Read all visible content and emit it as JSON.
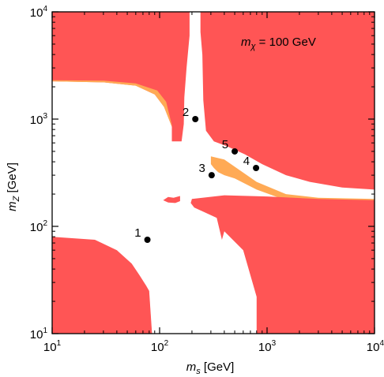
{
  "chart_data": {
    "type": "scatter",
    "title": "",
    "annotation": {
      "prefix": "m",
      "subscript": "χ",
      "suffix": " = 100 GeV"
    },
    "xlabel": {
      "base": "m",
      "sub": "s",
      "rest": " [GeV]"
    },
    "ylabel": {
      "base": "m",
      "sub": "Z",
      "rest": " [GeV]"
    },
    "xscale": "log",
    "yscale": "log",
    "xlim": [
      10,
      10000
    ],
    "ylim": [
      10,
      10000
    ],
    "x_ticks": [
      {
        "value": 10,
        "base": "10",
        "exp": "1"
      },
      {
        "value": 100,
        "base": "10",
        "exp": "2"
      },
      {
        "value": 1000,
        "base": "10",
        "exp": "3"
      },
      {
        "value": 10000,
        "base": "10",
        "exp": "4"
      }
    ],
    "y_ticks": [
      {
        "value": 10,
        "base": "10",
        "exp": "1"
      },
      {
        "value": 100,
        "base": "10",
        "exp": "2"
      },
      {
        "value": 1000,
        "base": "10",
        "exp": "3"
      },
      {
        "value": 10000,
        "base": "10",
        "exp": "4"
      }
    ],
    "colors": {
      "excluded": "#ff5555",
      "secondary": "#ffaa55",
      "allowed": "#ffffff",
      "point": "#000000"
    },
    "regions": [
      {
        "name": "upper-left-excluded",
        "color": "excluded",
        "points": [
          [
            10,
            10000
          ],
          [
            190,
            10000
          ],
          [
            190,
            6000
          ],
          [
            178,
            3000
          ],
          [
            170,
            1600
          ],
          [
            168,
            900
          ],
          [
            160,
            620
          ],
          [
            130,
            620
          ],
          [
            130,
            850
          ],
          [
            110,
            1300
          ],
          [
            90,
            1700
          ],
          [
            60,
            2050
          ],
          [
            30,
            2200
          ],
          [
            10,
            2250
          ]
        ]
      },
      {
        "name": "upper-left-orange",
        "color": "secondary",
        "points": [
          [
            10,
            2250
          ],
          [
            30,
            2200
          ],
          [
            60,
            2050
          ],
          [
            90,
            1700
          ],
          [
            110,
            1300
          ],
          [
            130,
            850
          ],
          [
            130,
            880
          ],
          [
            115,
            1450
          ],
          [
            95,
            1850
          ],
          [
            60,
            2150
          ],
          [
            30,
            2280
          ],
          [
            10,
            2300
          ]
        ]
      },
      {
        "name": "upper-right-excluded",
        "color": "excluded",
        "points": [
          [
            240,
            10000
          ],
          [
            10000,
            10000
          ],
          [
            10000,
            220
          ],
          [
            5000,
            230
          ],
          [
            2500,
            260
          ],
          [
            1500,
            300
          ],
          [
            900,
            380
          ],
          [
            620,
            470
          ],
          [
            420,
            560
          ],
          [
            320,
            620
          ],
          [
            270,
            780
          ],
          [
            255,
            1500
          ],
          [
            250,
            4000
          ],
          [
            240,
            6500
          ]
        ]
      },
      {
        "name": "diagonal-orange",
        "color": "secondary",
        "points": [
          [
            300,
            450
          ],
          [
            400,
            420
          ],
          [
            800,
            260
          ],
          [
            1500,
            200
          ],
          [
            3000,
            185
          ],
          [
            10000,
            180
          ],
          [
            10000,
            160
          ],
          [
            3000,
            165
          ],
          [
            1500,
            175
          ],
          [
            800,
            220
          ],
          [
            500,
            280
          ],
          [
            400,
            300
          ],
          [
            350,
            320
          ],
          [
            320,
            350
          ],
          [
            300,
            380
          ]
        ]
      },
      {
        "name": "small-mid-blob",
        "color": "excluded",
        "points": [
          [
            108,
            175
          ],
          [
            120,
            188
          ],
          [
            135,
            185
          ],
          [
            155,
            192
          ],
          [
            155,
            172
          ],
          [
            140,
            165
          ],
          [
            120,
            167
          ]
        ]
      },
      {
        "name": "lower-right-excluded",
        "color": "excluded",
        "points": [
          [
            200,
            180
          ],
          [
            400,
            195
          ],
          [
            1000,
            190
          ],
          [
            3000,
            180
          ],
          [
            10000,
            175
          ],
          [
            10000,
            10
          ],
          [
            800,
            10
          ],
          [
            800,
            22
          ],
          [
            600,
            60
          ],
          [
            400,
            90
          ],
          [
            380,
            75
          ],
          [
            340,
            120
          ],
          [
            210,
            150
          ],
          [
            195,
            165
          ]
        ]
      },
      {
        "name": "lower-left-excluded",
        "color": "excluded",
        "points": [
          [
            10,
            80
          ],
          [
            25,
            75
          ],
          [
            40,
            60
          ],
          [
            55,
            45
          ],
          [
            65,
            35
          ],
          [
            75,
            28
          ],
          [
            80,
            25
          ],
          [
            85,
            10
          ],
          [
            10,
            10
          ]
        ]
      }
    ],
    "points": [
      {
        "label": "1",
        "x": 77,
        "y": 75
      },
      {
        "label": "2",
        "x": 215,
        "y": 1000
      },
      {
        "label": "3",
        "x": 305,
        "y": 300
      },
      {
        "label": "4",
        "x": 790,
        "y": 350
      },
      {
        "label": "5",
        "x": 500,
        "y": 500
      }
    ]
  }
}
